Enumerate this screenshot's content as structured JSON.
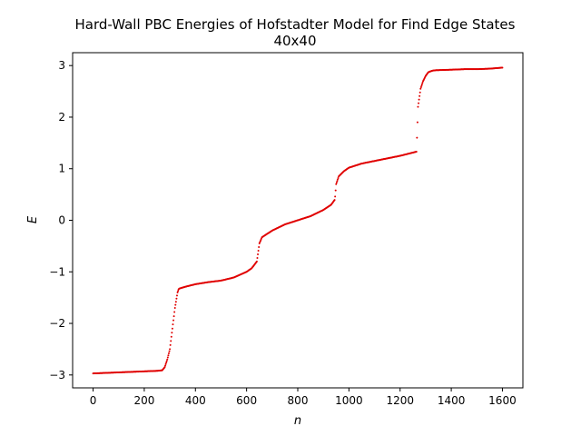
{
  "chart_data": {
    "type": "scatter",
    "title": "Hard-Wall PBC Energies of Hofstadter Model for Find Edge States",
    "subtitle": "40x40",
    "xlabel": "n",
    "ylabel": "E",
    "xlim": [
      -80,
      1680
    ],
    "ylim": [
      -3.25,
      3.25
    ],
    "xticks": [
      0,
      200,
      400,
      600,
      800,
      1000,
      1200,
      1400,
      1600
    ],
    "yticks": [
      -3,
      -2,
      -1,
      0,
      1,
      2,
      3
    ],
    "grid": false,
    "marker_color": "#e00000",
    "series": [
      {
        "x": [
          0,
          50,
          100,
          150,
          200,
          250,
          270,
          280,
          290,
          300,
          310,
          320,
          330,
          335,
          340,
          360,
          400,
          450,
          500,
          550,
          600,
          620,
          640,
          650,
          660,
          700,
          750,
          800,
          850,
          900,
          930,
          945,
          950,
          960,
          980,
          1000,
          1050,
          1100,
          1150,
          1200,
          1240,
          1264,
          1266,
          1270,
          1280,
          1290,
          1300,
          1310,
          1325,
          1340,
          1400,
          1450,
          1500,
          1550,
          1600
        ],
        "y": [
          -2.97,
          -2.96,
          -2.95,
          -2.94,
          -2.93,
          -2.92,
          -2.91,
          -2.85,
          -2.7,
          -2.5,
          -2.1,
          -1.7,
          -1.4,
          -1.33,
          -1.32,
          -1.29,
          -1.24,
          -1.2,
          -1.17,
          -1.11,
          -1.0,
          -0.93,
          -0.8,
          -0.45,
          -0.33,
          -0.2,
          -0.08,
          0.0,
          0.08,
          0.2,
          0.3,
          0.4,
          0.7,
          0.85,
          0.95,
          1.02,
          1.1,
          1.15,
          1.2,
          1.25,
          1.3,
          1.33,
          1.6,
          2.2,
          2.55,
          2.7,
          2.8,
          2.87,
          2.9,
          2.91,
          2.92,
          2.93,
          2.93,
          2.94,
          2.96
        ]
      }
    ]
  }
}
